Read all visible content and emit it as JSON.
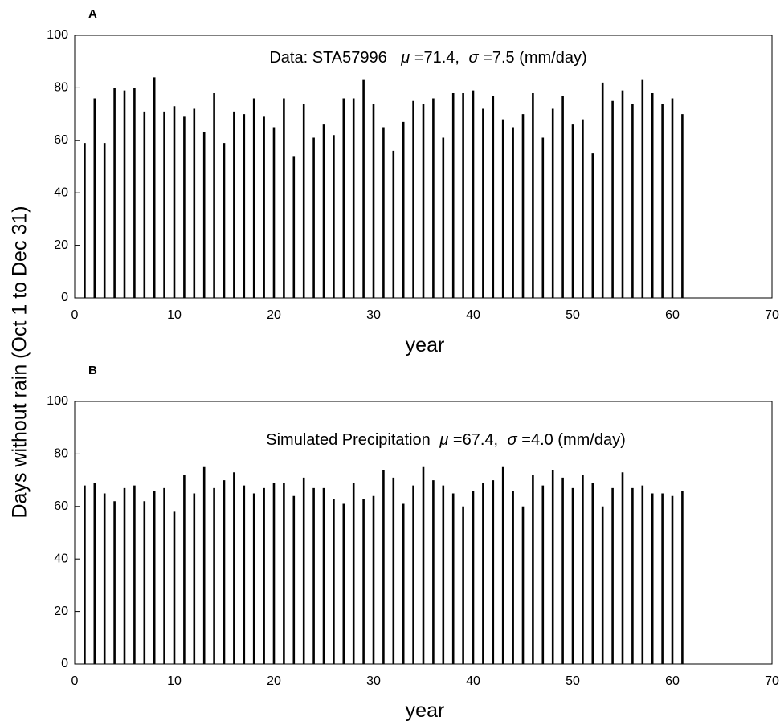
{
  "ylabel": "Days without rain (Oct 1 to Dec 31)",
  "chart_data": [
    {
      "type": "bar",
      "panel_label": "A",
      "annotation": {
        "prefix": "Data: STA57996",
        "mu_symbol": "μ",
        "mu_value": "=71.4,",
        "sigma_symbol": "σ",
        "sigma_value": "=7.5 (mm/day)"
      },
      "xlabel": "year",
      "xlim": [
        0,
        70
      ],
      "ylim": [
        0,
        100
      ],
      "xticks": [
        0,
        10,
        20,
        30,
        40,
        50,
        60,
        70
      ],
      "yticks": [
        0,
        20,
        40,
        60,
        80,
        100
      ],
      "x": [
        1,
        2,
        3,
        4,
        5,
        6,
        7,
        8,
        9,
        10,
        11,
        12,
        13,
        14,
        15,
        16,
        17,
        18,
        19,
        20,
        21,
        22,
        23,
        24,
        25,
        26,
        27,
        28,
        29,
        30,
        31,
        32,
        33,
        34,
        35,
        36,
        37,
        38,
        39,
        40,
        41,
        42,
        43,
        44,
        45,
        46,
        47,
        48,
        49,
        50,
        51,
        52,
        53,
        54,
        55,
        56,
        57,
        58,
        59,
        60,
        61
      ],
      "values": [
        59,
        76,
        59,
        80,
        79,
        80,
        71,
        84,
        71,
        73,
        69,
        72,
        63,
        78,
        59,
        71,
        70,
        76,
        69,
        65,
        76,
        54,
        74,
        61,
        66,
        62,
        76,
        76,
        83,
        74,
        65,
        56,
        67,
        75,
        74,
        76,
        61,
        78,
        78,
        79,
        72,
        77,
        68,
        65,
        70,
        78,
        61,
        72,
        77,
        66,
        68,
        55,
        82,
        75,
        79,
        74,
        83,
        78,
        74,
        76,
        70
      ]
    },
    {
      "type": "bar",
      "panel_label": "B",
      "annotation": {
        "prefix": "Simulated Precipitation",
        "mu_symbol": "μ",
        "mu_value": "=67.4,",
        "sigma_symbol": "σ",
        "sigma_value": "=4.0 (mm/day)"
      },
      "xlabel": "year",
      "xlim": [
        0,
        70
      ],
      "ylim": [
        0,
        100
      ],
      "xticks": [
        0,
        10,
        20,
        30,
        40,
        50,
        60,
        70
      ],
      "yticks": [
        0,
        20,
        40,
        60,
        80,
        100
      ],
      "x": [
        1,
        2,
        3,
        4,
        5,
        6,
        7,
        8,
        9,
        10,
        11,
        12,
        13,
        14,
        15,
        16,
        17,
        18,
        19,
        20,
        21,
        22,
        23,
        24,
        25,
        26,
        27,
        28,
        29,
        30,
        31,
        32,
        33,
        34,
        35,
        36,
        37,
        38,
        39,
        40,
        41,
        42,
        43,
        44,
        45,
        46,
        47,
        48,
        49,
        50,
        51,
        52,
        53,
        54,
        55,
        56,
        57,
        58,
        59,
        60,
        61
      ],
      "values": [
        68,
        69,
        65,
        62,
        67,
        68,
        62,
        66,
        67,
        58,
        72,
        65,
        75,
        67,
        70,
        73,
        68,
        65,
        67,
        69,
        69,
        64,
        71,
        67,
        67,
        63,
        61,
        69,
        63,
        64,
        74,
        71,
        61,
        68,
        75,
        70,
        68,
        65,
        60,
        66,
        69,
        70,
        75,
        66,
        60,
        72,
        68,
        74,
        71,
        67,
        72,
        69,
        60,
        67,
        73,
        67,
        68,
        65,
        65,
        64,
        66
      ]
    }
  ]
}
